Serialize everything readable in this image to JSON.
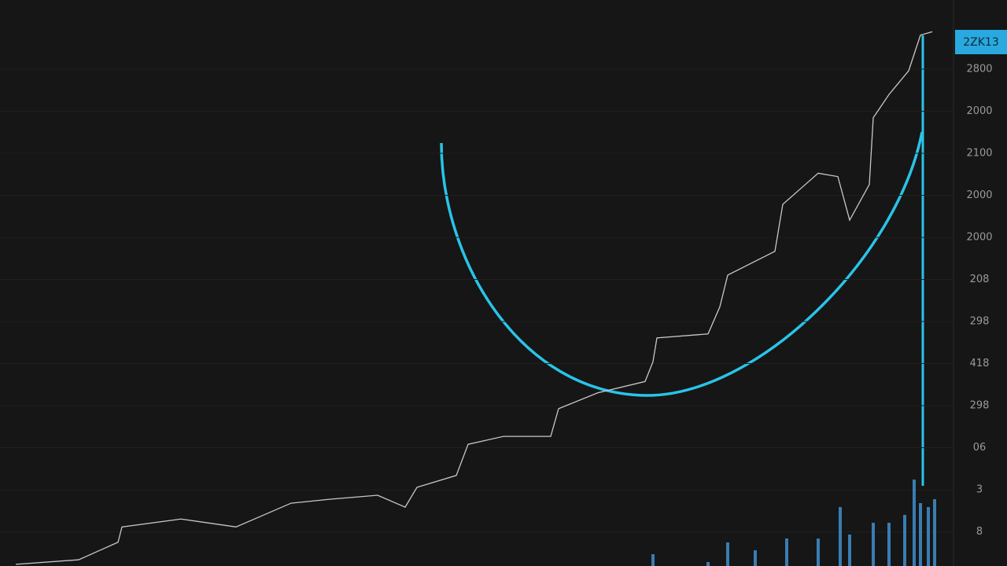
{
  "chart_data": {
    "type": "line",
    "price_tag": "2ZK13",
    "axis_labels": [
      "2800",
      "2000",
      "2100",
      "2000",
      "2000",
      "208",
      "298",
      "418",
      "298",
      "06",
      "3",
      "8"
    ],
    "x": [
      20,
      100,
      150,
      155,
      230,
      300,
      370,
      420,
      480,
      515,
      530,
      580,
      595,
      640,
      700,
      710,
      760,
      820,
      830,
      835,
      900,
      915,
      925,
      985,
      995,
      1040,
      1065,
      1080,
      1105,
      1110,
      1130,
      1155,
      1170,
      1185
    ],
    "values": [
      0.3,
      1.1,
      4.2,
      6.9,
      8.3,
      6.9,
      11.1,
      11.8,
      12.5,
      10.4,
      13.9,
      16.0,
      21.5,
      22.9,
      22.9,
      27.8,
      30.6,
      32.6,
      36.1,
      40.3,
      41.0,
      45.8,
      51.4,
      55.6,
      63.9,
      69.4,
      68.8,
      61.1,
      67.4,
      79.2,
      83.3,
      87.5,
      93.8,
      94.4
    ],
    "color": "#c8c8c8",
    "xlim": [
      0,
      1210
    ],
    "ylim": [
      0,
      100
    ],
    "volume": {
      "x": [
        830,
        900,
        925,
        960,
        1000,
        1040,
        1068,
        1080,
        1110,
        1130,
        1150,
        1162,
        1170,
        1180,
        1188
      ],
      "values": [
        15,
        5,
        30,
        20,
        35,
        35,
        75,
        40,
        55,
        55,
        65,
        110,
        80,
        75,
        85
      ],
      "color": "#3f8fcf",
      "vlim": [
        0,
        120
      ]
    }
  }
}
